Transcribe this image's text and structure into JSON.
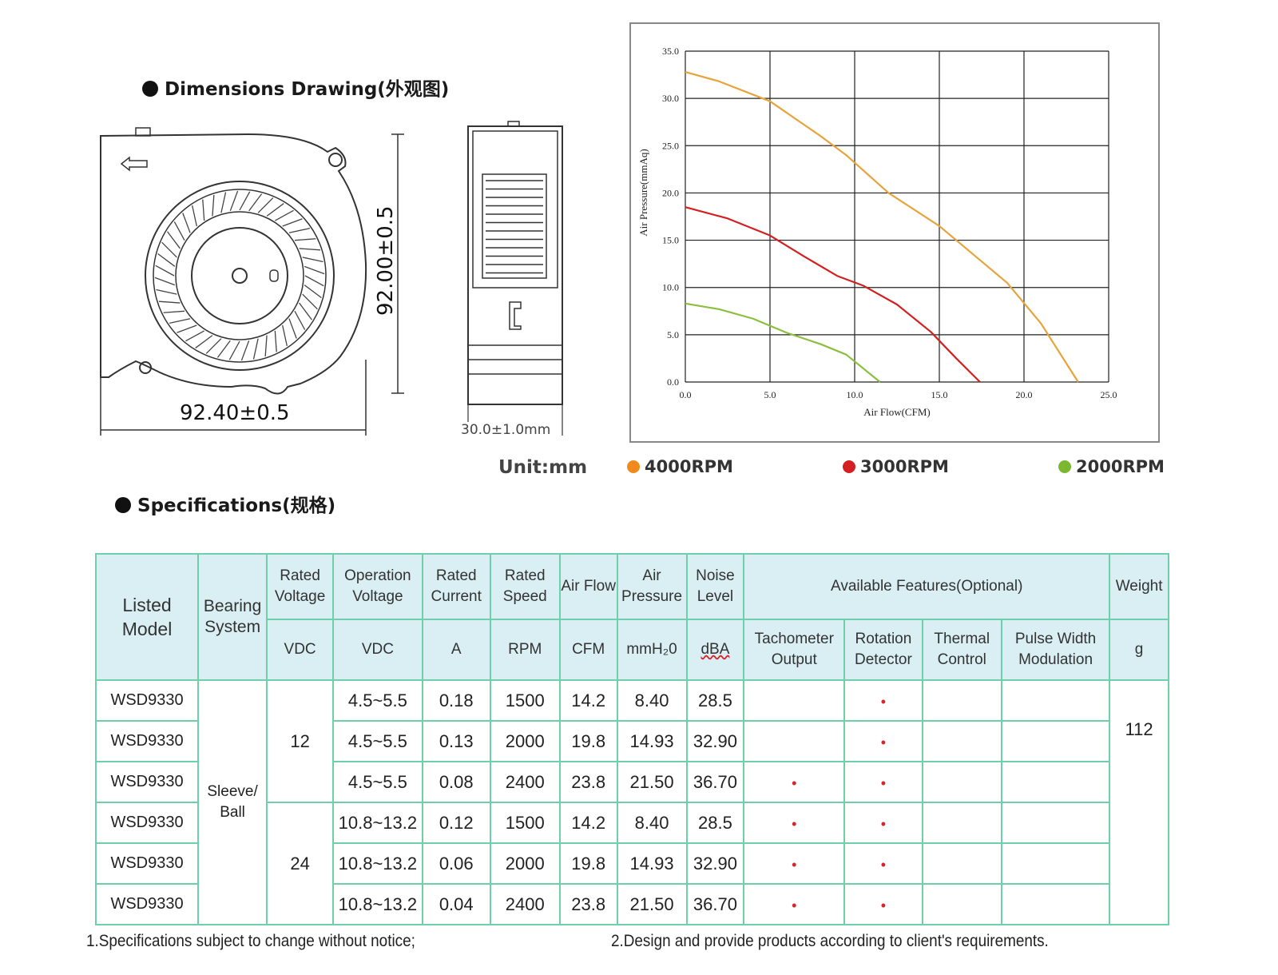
{
  "dimensions": {
    "heading": "Dimensions Drawing(外观图)",
    "height_label": "92.00±0.5",
    "width_label": "92.40±0.5",
    "thickness_label": "30.0±1.0mm",
    "unit_label": "Unit:mm"
  },
  "chart_data": {
    "type": "line",
    "title": "",
    "xlabel": "Air Flow(CFM)",
    "ylabel": "Air Pressure(mmAq)",
    "xlim": [
      0,
      25
    ],
    "ylim": [
      0,
      35
    ],
    "x_ticks": [
      "0.0",
      "5.0",
      "10.0",
      "15.0",
      "20.0",
      "25.0"
    ],
    "y_ticks": [
      "0.0",
      "5.0",
      "10.0",
      "15.0",
      "20.0",
      "25.0",
      "30.0",
      "35.0"
    ],
    "grid": true,
    "legend_position": "bottom",
    "series": [
      {
        "name": "4000RPM",
        "color": "#e8a33a",
        "x": [
          0,
          2,
          5,
          8,
          9.5,
          12,
          15,
          17,
          19,
          21,
          23.2
        ],
        "y": [
          32.8,
          31.8,
          29.7,
          26,
          24,
          20,
          16.5,
          13.5,
          10.5,
          6.2,
          0
        ]
      },
      {
        "name": "3000RPM",
        "color": "#d42020",
        "x": [
          0,
          2.5,
          5,
          7,
          9,
          10.5,
          12.5,
          14.5,
          16,
          17.4
        ],
        "y": [
          18.5,
          17.3,
          15.5,
          13.3,
          11.2,
          10.2,
          8.2,
          5.3,
          2.5,
          0
        ]
      },
      {
        "name": "2000RPM",
        "color": "#8cbf3f",
        "x": [
          0,
          2,
          4,
          6,
          8,
          9.5,
          11.5
        ],
        "y": [
          8.3,
          7.7,
          6.7,
          5.2,
          4,
          2.9,
          0
        ]
      }
    ]
  },
  "specs": {
    "heading": "Specifications(规格)",
    "headers": {
      "listed_model": "Listed Model",
      "bearing_system": "Bearing System",
      "rated_voltage": "Rated Voltage",
      "operation_voltage": "Operation Voltage",
      "rated_current": "Rated Current",
      "rated_speed": "Rated Speed",
      "air_flow": "Air Flow",
      "air_pressure": "Air Pressure",
      "noise_level": "Noise Level",
      "available_features": "Available Features(Optional)",
      "weight": "Weight"
    },
    "units": {
      "rated_voltage": "VDC",
      "operation_voltage": "VDC",
      "rated_current": "A",
      "rated_speed": "RPM",
      "air_flow": "CFM",
      "air_pressure": "mmH₂0",
      "noise_level": "dBA",
      "tachometer": "Tachometer Output",
      "rotation": "Rotation Detector",
      "thermal": "Thermal Control",
      "pwm": "Pulse Width Modulation",
      "weight": "g"
    },
    "bearing": "Sleeve/ Ball",
    "voltage_groups": [
      "12",
      "24"
    ],
    "weight": "112",
    "bullet_symbol": "•",
    "rows": [
      {
        "model": "WSD9330",
        "op_voltage": "4.5~5.5",
        "current": "0.18",
        "speed": "1500",
        "flow": "14.2",
        "pressure": "8.40",
        "noise": "28.5",
        "tach": false,
        "rot": true,
        "thermal": false,
        "pwm": false
      },
      {
        "model": "WSD9330",
        "op_voltage": "4.5~5.5",
        "current": "0.13",
        "speed": "2000",
        "flow": "19.8",
        "pressure": "14.93",
        "noise": "32.90",
        "tach": false,
        "rot": true,
        "thermal": false,
        "pwm": false
      },
      {
        "model": "WSD9330",
        "op_voltage": "4.5~5.5",
        "current": "0.08",
        "speed": "2400",
        "flow": "23.8",
        "pressure": "21.50",
        "noise": "36.70",
        "tach": true,
        "rot": true,
        "thermal": false,
        "pwm": false
      },
      {
        "model": "WSD9330",
        "op_voltage": "10.8~13.2",
        "current": "0.12",
        "speed": "1500",
        "flow": "14.2",
        "pressure": "8.40",
        "noise": "28.5",
        "tach": true,
        "rot": true,
        "thermal": false,
        "pwm": false
      },
      {
        "model": "WSD9330",
        "op_voltage": "10.8~13.2",
        "current": "0.06",
        "speed": "2000",
        "flow": "19.8",
        "pressure": "14.93",
        "noise": "32.90",
        "tach": true,
        "rot": true,
        "thermal": false,
        "pwm": false
      },
      {
        "model": "WSD9330",
        "op_voltage": "10.8~13.2",
        "current": "0.04",
        "speed": "2400",
        "flow": "23.8",
        "pressure": "21.50",
        "noise": "36.70",
        "tach": true,
        "rot": true,
        "thermal": false,
        "pwm": false
      }
    ]
  },
  "notes": {
    "note1": "1.Specifications subject to change without notice;",
    "note2": "2.Design and provide products according to client's requirements."
  }
}
